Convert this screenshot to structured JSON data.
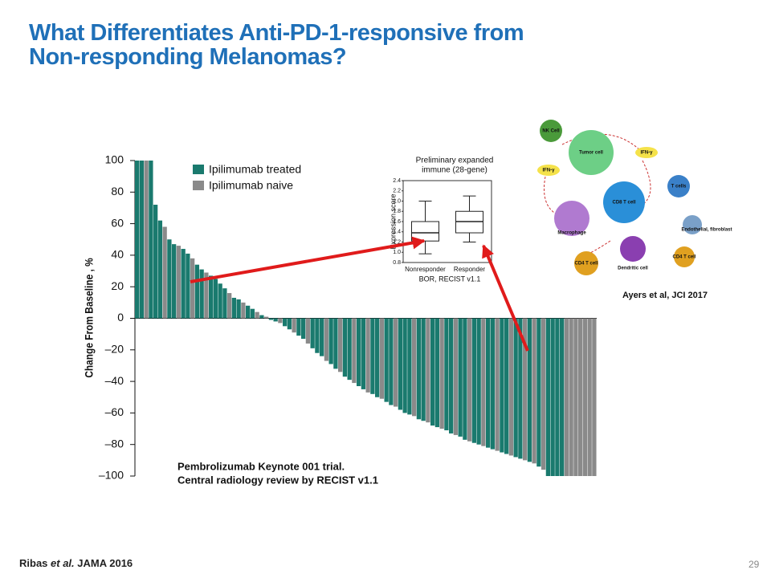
{
  "header": {
    "title_lines": [
      "What Differentiates Anti-PD-1-responsive from",
      "Non-responding Melanomas?"
    ]
  },
  "footer": {
    "citation": [
      "Ribas",
      "et al.",
      "JAMA 2016"
    ],
    "page_number": "29"
  },
  "diagram": {
    "citation": "Ayers et al, JCI 2017",
    "nodes": [
      "NK Cell",
      "Tumor cell",
      "CD8 T cell",
      "Macrophage",
      "CD4 T cell",
      "Dendritic cell",
      "T cells",
      "CD4 T cell",
      "Endothelial, fibroblast",
      "IFN-γ",
      "IFN-γ"
    ]
  },
  "chart_data": [
    {
      "type": "bar",
      "ylabel": "Change From Baseline , %",
      "annotation": [
        "Pembrolizumab Keynote 001 trial.",
        "Central radiology review by RECIST v1.1"
      ],
      "ylim": [
        -100,
        100
      ],
      "yticks": [
        {
          "value": -100,
          "label": "–100"
        },
        {
          "value": -80,
          "label": "–80"
        },
        {
          "value": -60,
          "label": "–60"
        },
        {
          "value": -40,
          "label": "–40"
        },
        {
          "value": -20,
          "label": "–20"
        },
        0,
        20,
        40,
        60,
        80,
        100
      ],
      "legend": "upper left",
      "series": [
        {
          "name": "Ipilimumab treated",
          "color": "#1a7a6e",
          "values": [
            100,
            100,
            null,
            100,
            72,
            62,
            null,
            50,
            47,
            null,
            44,
            41,
            null,
            34,
            31,
            null,
            27,
            25,
            22,
            19,
            null,
            13,
            12,
            null,
            8,
            6,
            null,
            2,
            null,
            -1,
            -2,
            null,
            -5,
            -7,
            null,
            -11,
            -13,
            null,
            -19,
            -22,
            -24,
            null,
            -29,
            -32,
            null,
            -37,
            -39,
            null,
            -43,
            -45,
            null,
            -48,
            -50,
            null,
            -53,
            -55,
            null,
            -58,
            -60,
            -61,
            null,
            -64,
            -65,
            null,
            -68,
            -69,
            null,
            -71,
            -73,
            null,
            -75,
            -77,
            null,
            -79,
            -80,
            null,
            -82,
            -83,
            null,
            -85,
            -86,
            null,
            -88,
            -89,
            null,
            -91,
            null,
            -94,
            null,
            -100,
            -100,
            -100,
            -100,
            null,
            null,
            null,
            null,
            null,
            null,
            null
          ]
        },
        {
          "name": "Ipilimumab naive",
          "color": "#8a8a8a",
          "values": [
            null,
            null,
            100,
            null,
            null,
            null,
            58,
            null,
            null,
            46,
            null,
            null,
            38,
            null,
            null,
            29,
            null,
            null,
            null,
            null,
            16,
            null,
            null,
            10,
            null,
            null,
            4,
            null,
            1,
            null,
            null,
            -3,
            null,
            null,
            -9,
            null,
            null,
            -16,
            null,
            null,
            null,
            -27,
            null,
            null,
            -34,
            null,
            null,
            -41,
            null,
            null,
            -47,
            null,
            null,
            -51,
            null,
            null,
            -56,
            null,
            null,
            null,
            -62,
            null,
            null,
            -66,
            null,
            null,
            -70,
            null,
            null,
            -74,
            null,
            null,
            -78,
            null,
            null,
            -81,
            null,
            null,
            -84,
            null,
            null,
            -87,
            null,
            null,
            -90,
            null,
            -92,
            null,
            -96,
            null,
            null,
            null,
            null,
            -100,
            -100,
            -100,
            -100,
            -100,
            -100,
            -100
          ]
        }
      ]
    },
    {
      "type": "box",
      "title": [
        "Preliminary expanded",
        "immune (28-gene)"
      ],
      "ylabel": "Expression score",
      "xlabel": "BOR, RECIST v1.1",
      "categories": [
        "Nonresponder",
        "Responder"
      ],
      "ylim": [
        0.8,
        2.4
      ],
      "yticks": [
        0.8,
        {
          "value": 1.0,
          "label": "1.0"
        },
        1.2,
        1.4,
        1.6,
        1.8,
        {
          "value": 2.0,
          "label": "2.0"
        },
        2.2,
        2.4
      ],
      "min": [
        0.97,
        1.2
      ],
      "q1": [
        1.22,
        1.38
      ],
      "median": [
        1.38,
        1.6
      ],
      "q3": [
        1.6,
        1.8
      ],
      "max": [
        2.0,
        2.1
      ]
    }
  ]
}
